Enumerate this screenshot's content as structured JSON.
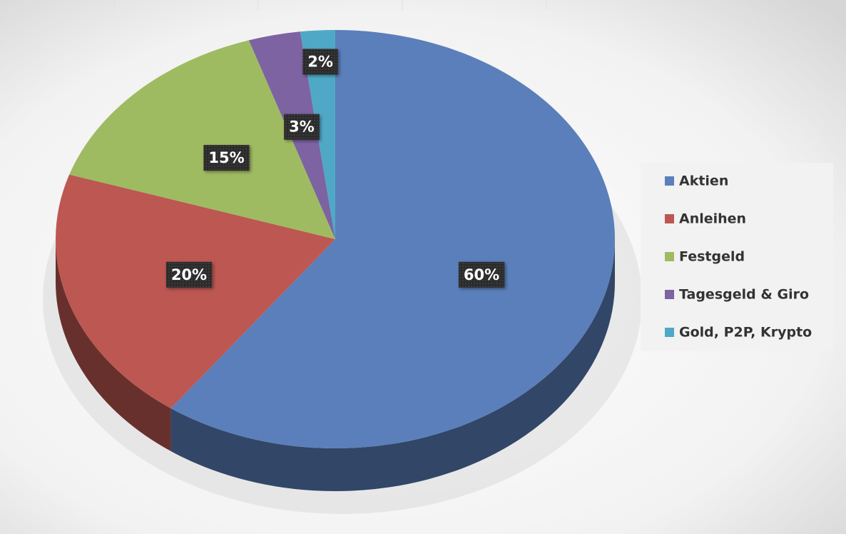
{
  "chart_data": {
    "type": "pie",
    "categories": [
      "Aktien",
      "Anleihen",
      "Festgeld",
      "Tagesgeld & Giro",
      "Gold, P2P, Krypto"
    ],
    "values": [
      60,
      20,
      15,
      3,
      2
    ],
    "value_labels": [
      "60%",
      "20%",
      "15%",
      "3%",
      "2%"
    ],
    "colors": [
      "#5b7fbb",
      "#bd5752",
      "#9fbb62",
      "#7d63a2",
      "#4fa9c6"
    ],
    "legend": "right"
  }
}
